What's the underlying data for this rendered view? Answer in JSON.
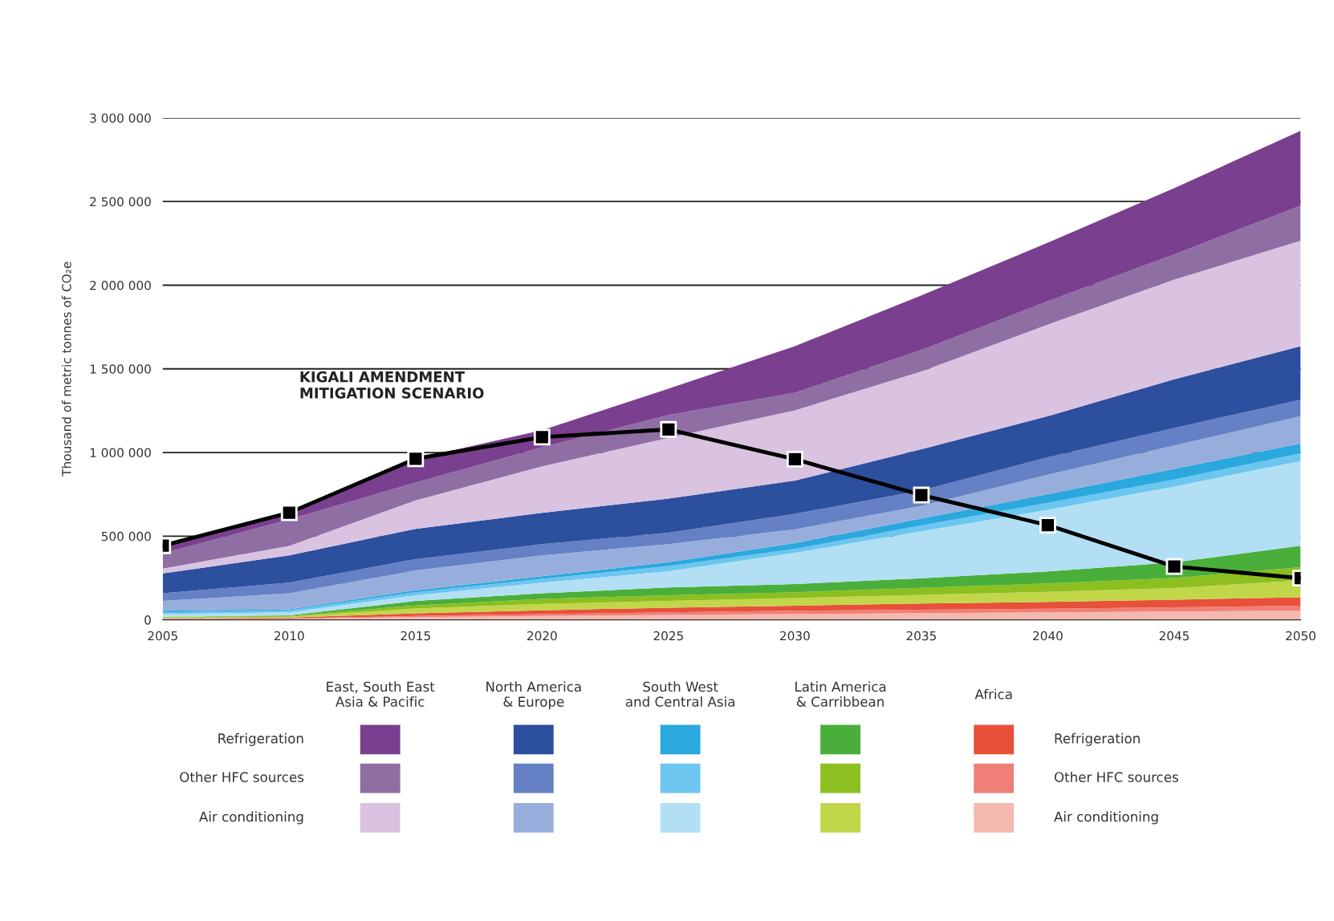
{
  "chart_data": {
    "type": "area",
    "stacked": true,
    "ylabel": "Thousand of metric tonnes of CO₂e",
    "x": [
      2005,
      2010,
      2015,
      2020,
      2025,
      2030,
      2035,
      2040,
      2045,
      2050
    ],
    "xlim": [
      2005,
      2050
    ],
    "xticks": [
      2005,
      2010,
      2015,
      2020,
      2025,
      2030,
      2035,
      2040,
      2045,
      2050
    ],
    "ylim": [
      0,
      3000000
    ],
    "yticks": [
      {
        "value": 0,
        "label": "0"
      },
      {
        "value": 500000,
        "label": "500 000"
      },
      {
        "value": 1000000,
        "label": "1 000 000"
      },
      {
        "value": 1500000,
        "label": "1 500 000"
      },
      {
        "value": 2000000,
        "label": "2 000 000"
      },
      {
        "value": 2500000,
        "label": "2 500 000"
      },
      {
        "value": 3000000,
        "label": "3 000 000"
      }
    ],
    "grid": "y",
    "legend": "bottom",
    "series": [
      {
        "color": "#f5b8ae",
        "values": [
          5000,
          7000,
          16000,
          23000,
          29000,
          35000,
          40000,
          45000,
          50000,
          55000
        ]
      },
      {
        "color": "#ef7f77",
        "values": [
          2000,
          2000,
          7000,
          11000,
          16000,
          20000,
          20000,
          22000,
          25000,
          30000
        ]
      },
      {
        "color": "#e8503a",
        "values": [
          2000,
          5000,
          16000,
          23000,
          28000,
          30000,
          37000,
          40000,
          45000,
          50000
        ]
      },
      {
        "color": "#c2d64a",
        "values": [
          5000,
          4000,
          29000,
          38000,
          40000,
          45000,
          52000,
          60000,
          70000,
          100000
        ]
      },
      {
        "color": "#8cbf1f",
        "values": [
          2000,
          5000,
          18000,
          30000,
          34000,
          35000,
          42000,
          50000,
          60000,
          80000
        ]
      },
      {
        "color": "#4aaf3a",
        "values": [
          2000,
          4000,
          27000,
          34000,
          46000,
          49000,
          58000,
          72000,
          93000,
          128000
        ]
      },
      {
        "color": "#b3dff5",
        "values": [
          16000,
          18000,
          34000,
          63000,
          97000,
          187000,
          280000,
          368000,
          454000,
          506000
        ]
      },
      {
        "color": "#6cc6ef",
        "values": [
          11000,
          12000,
          18000,
          23000,
          32000,
          23000,
          35000,
          42000,
          42000,
          46000
        ]
      },
      {
        "color": "#2ba8de",
        "values": [
          9000,
          6000,
          12000,
          16000,
          22000,
          35000,
          42000,
          52000,
          63000,
          59000
        ]
      },
      {
        "color": "#97aedd",
        "values": [
          59000,
          96000,
          118000,
          124000,
          109000,
          82000,
          75000,
          116000,
          140000,
          163000
        ]
      },
      {
        "color": "#6580c4",
        "values": [
          46000,
          63000,
          68000,
          68000,
          68000,
          93000,
          93000,
          105000,
          105000,
          98000
        ]
      },
      {
        "color": "#2c4f9e",
        "values": [
          118000,
          163000,
          181000,
          186000,
          204000,
          198000,
          245000,
          245000,
          291000,
          321000
        ]
      },
      {
        "color": "#d9c3e0",
        "values": [
          29000,
          57000,
          170000,
          279000,
          363000,
          420000,
          466000,
          548000,
          595000,
          630000
        ]
      },
      {
        "color": "#8f6ea3",
        "values": [
          91000,
          158000,
          106000,
          113000,
          136000,
          105000,
          128000,
          139000,
          151000,
          210000
        ]
      },
      {
        "color": "#7b3f8f",
        "values": [
          45000,
          46000,
          143000,
          102000,
          158000,
          279000,
          326000,
          350000,
          396000,
          447000
        ]
      },
      {
        "type": "line",
        "name": "KIGALI AMENDMENT\nMITIGATION SCENARIO",
        "color": "#000000",
        "marker": "square",
        "values": [
          443000,
          640000,
          963000,
          1092000,
          1138000,
          960000,
          746000,
          566000,
          319000,
          249000
        ]
      }
    ],
    "annotations": [
      "East, South East\nAsia & Pacific",
      "North America\n& Europe",
      "South West\nand Central Asia",
      "Latin America\n& Carribbean",
      "Africa",
      "Refrigeration",
      "Other HFC sources",
      "Air conditioning",
      "Refrigeration",
      "Other HFC sources",
      "Air conditioning"
    ]
  }
}
